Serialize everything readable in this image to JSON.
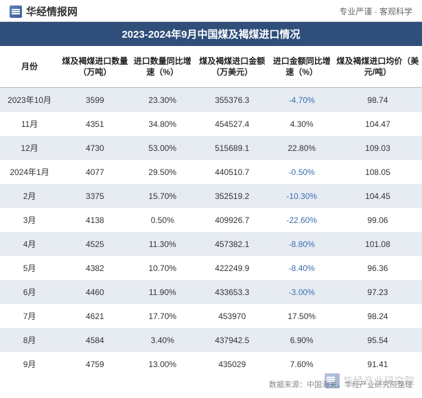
{
  "header": {
    "brand": "华经情报网",
    "tagline": "专业严谨 · 客观科学"
  },
  "title": "2023-2024年9月中国煤及褐煤进口情况",
  "columns": [
    "月份",
    "煤及褐煤进口数量（万吨）",
    "进口数量同比增速（%）",
    "煤及褐煤进口金额（万美元）",
    "进口金额同比增速（%）",
    "煤及褐煤进口均价（美元/吨）"
  ],
  "rows": [
    {
      "month": "2023年10月",
      "qty": "3599",
      "qty_yoy": "23.30%",
      "amt": "355376.3",
      "amt_yoy": "-4.70%",
      "price": "98.74"
    },
    {
      "month": "11月",
      "qty": "4351",
      "qty_yoy": "34.80%",
      "amt": "454527.4",
      "amt_yoy": "4.30%",
      "price": "104.47"
    },
    {
      "month": "12月",
      "qty": "4730",
      "qty_yoy": "53.00%",
      "amt": "515689.1",
      "amt_yoy": "22.80%",
      "price": "109.03"
    },
    {
      "month": "2024年1月",
      "qty": "4077",
      "qty_yoy": "29.50%",
      "amt": "440510.7",
      "amt_yoy": "-0.50%",
      "price": "108.05"
    },
    {
      "month": "2月",
      "qty": "3375",
      "qty_yoy": "15.70%",
      "amt": "352519.2",
      "amt_yoy": "-10.30%",
      "price": "104.45"
    },
    {
      "month": "3月",
      "qty": "4138",
      "qty_yoy": "0.50%",
      "amt": "409926.7",
      "amt_yoy": "-22.60%",
      "price": "99.06"
    },
    {
      "month": "4月",
      "qty": "4525",
      "qty_yoy": "11.30%",
      "amt": "457382.1",
      "amt_yoy": "-8.80%",
      "price": "101.08"
    },
    {
      "month": "5月",
      "qty": "4382",
      "qty_yoy": "10.70%",
      "amt": "422249.9",
      "amt_yoy": "-8.40%",
      "price": "96.36"
    },
    {
      "month": "6月",
      "qty": "4460",
      "qty_yoy": "11.90%",
      "amt": "433653.3",
      "amt_yoy": "-3.00%",
      "price": "97.23"
    },
    {
      "month": "7月",
      "qty": "4621",
      "qty_yoy": "17.70%",
      "amt": "453970",
      "amt_yoy": "17.50%",
      "price": "98.24"
    },
    {
      "month": "8月",
      "qty": "4584",
      "qty_yoy": "3.40%",
      "amt": "437942.5",
      "amt_yoy": "6.90%",
      "price": "95.54"
    },
    {
      "month": "9月",
      "qty": "4759",
      "qty_yoy": "13.00%",
      "amt": "435029",
      "amt_yoy": "7.60%",
      "price": "91.41"
    }
  ],
  "source": "数据来源：中国海关，华经产业研究院整理",
  "watermark": "华经产业研究院",
  "style": {
    "title_bg": "#2f4e7a",
    "title_color": "#ffffff",
    "row_odd_bg": "#e7ebf2",
    "row_even_bg": "#ffffff",
    "negative_color": "#3a6fb0",
    "text_color": "#333333",
    "header_border": "#bbbbbb",
    "font_family": "Microsoft YaHei",
    "title_fontsize": 15,
    "header_fontsize": 12,
    "cell_fontsize": 12,
    "col_widths_pct": [
      14,
      17,
      15,
      18,
      15,
      21
    ]
  }
}
